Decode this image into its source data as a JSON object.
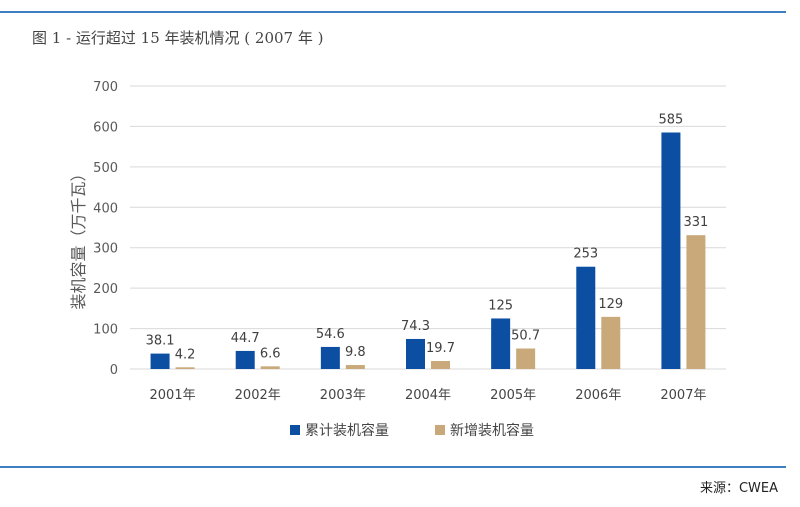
{
  "figure_title": "图 1 - 运行超过 15 年装机情况 ( 2007 年 )",
  "source": "来源：CWEA",
  "colors": {
    "rule": "#3d7fc1",
    "series_cumulative": "#0b4ea2",
    "series_new": "#c9a97a",
    "grid": "#d9d9d9"
  },
  "chart_data": {
    "type": "bar",
    "categories": [
      "2001年",
      "2002年",
      "2003年",
      "2004年",
      "2005年",
      "2006年",
      "2007年"
    ],
    "series": [
      {
        "name": "累计装机容量",
        "values": [
          38.1,
          44.7,
          54.6,
          74.3,
          125,
          253,
          585
        ],
        "labels": [
          "38.1",
          "44.7",
          "54.6",
          "74.3",
          "125",
          "253",
          "585"
        ]
      },
      {
        "name": "新增装机容量",
        "values": [
          4.2,
          6.6,
          9.8,
          19.7,
          50.7,
          129,
          331
        ],
        "labels": [
          "4.2",
          "6.6",
          "9.8",
          "19.7",
          "50.7",
          "129",
          "331"
        ]
      }
    ],
    "ylabel": "装机容量（万千瓦）",
    "ylim": [
      0,
      700
    ],
    "yticks": [
      0,
      100,
      200,
      300,
      400,
      500,
      600,
      700
    ],
    "grid": true,
    "legend_position": "bottom"
  }
}
